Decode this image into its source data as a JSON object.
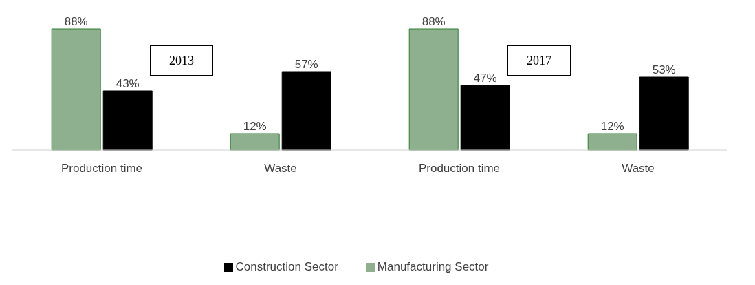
{
  "chart_data": {
    "type": "bar",
    "categories": [
      "Production time",
      "Waste",
      "Production time",
      "Waste"
    ],
    "series": [
      {
        "name": "Manufacturing Sector",
        "color": "#8fb08f",
        "values": [
          88,
          12,
          88,
          12
        ],
        "value_labels": [
          "88%",
          "12%",
          "88%",
          "12%"
        ]
      },
      {
        "name": "Construction Sector",
        "color": "#000000",
        "values": [
          43,
          57,
          47,
          53
        ],
        "value_labels": [
          "43%",
          "57%",
          "47%",
          "53%"
        ]
      }
    ],
    "annotations": [
      "2013",
      "2017"
    ],
    "legend": "bottom",
    "grid": false
  }
}
